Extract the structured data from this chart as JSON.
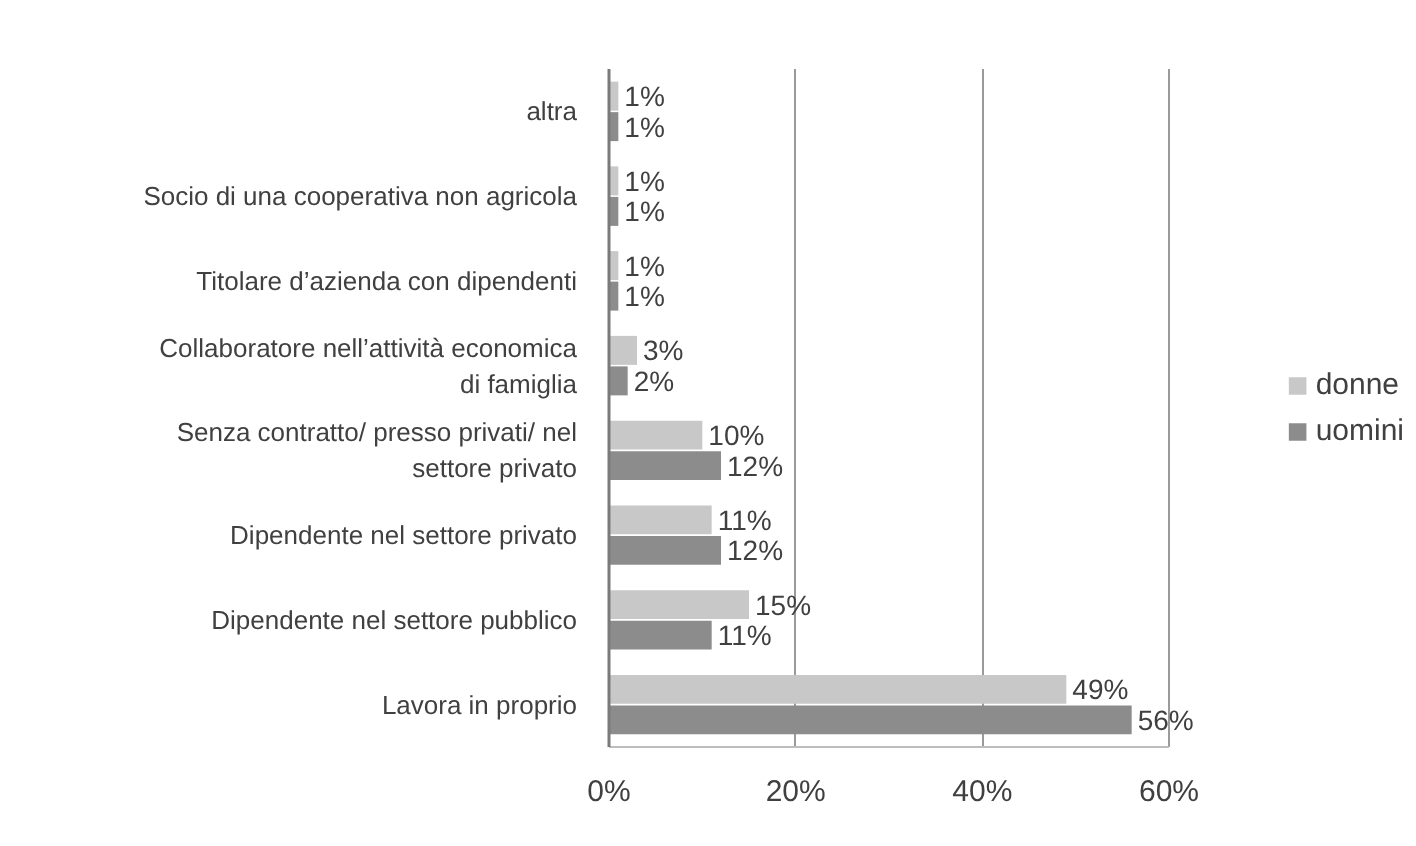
{
  "chart_data": {
    "type": "bar",
    "orientation": "horizontal",
    "categories": [
      "altra",
      "Socio di una cooperativa non agricola",
      "Titolare d’azienda con dipendenti",
      "Collaboratore nell’attività economica di famiglia",
      "Senza contratto/ presso privati/ nel settore privato",
      "Dipendente nel settore privato",
      "Dipendente nel settore pubblico",
      "Lavora in proprio"
    ],
    "series": [
      {
        "name": "donne",
        "color": "#c8c8c8",
        "values": [
          1,
          1,
          1,
          3,
          10,
          11,
          15,
          49
        ],
        "value_labels": [
          "1%",
          "1%",
          "1%",
          "3%",
          "10%",
          "11%",
          "15%",
          "49%"
        ]
      },
      {
        "name": "uomini",
        "color": "#8c8c8c",
        "values": [
          1,
          1,
          1,
          2,
          12,
          12,
          11,
          56
        ],
        "value_labels": [
          "1%",
          "1%",
          "1%",
          "2%",
          "12%",
          "12%",
          "11%",
          "56%"
        ]
      }
    ],
    "xlim": [
      0,
      60
    ],
    "xticks": [
      {
        "value": 0,
        "label": "0%"
      },
      {
        "value": 20,
        "label": "20%"
      },
      {
        "value": 40,
        "label": "40%"
      },
      {
        "value": 60,
        "label": "60%"
      }
    ],
    "grid": "x",
    "legend": "right"
  }
}
